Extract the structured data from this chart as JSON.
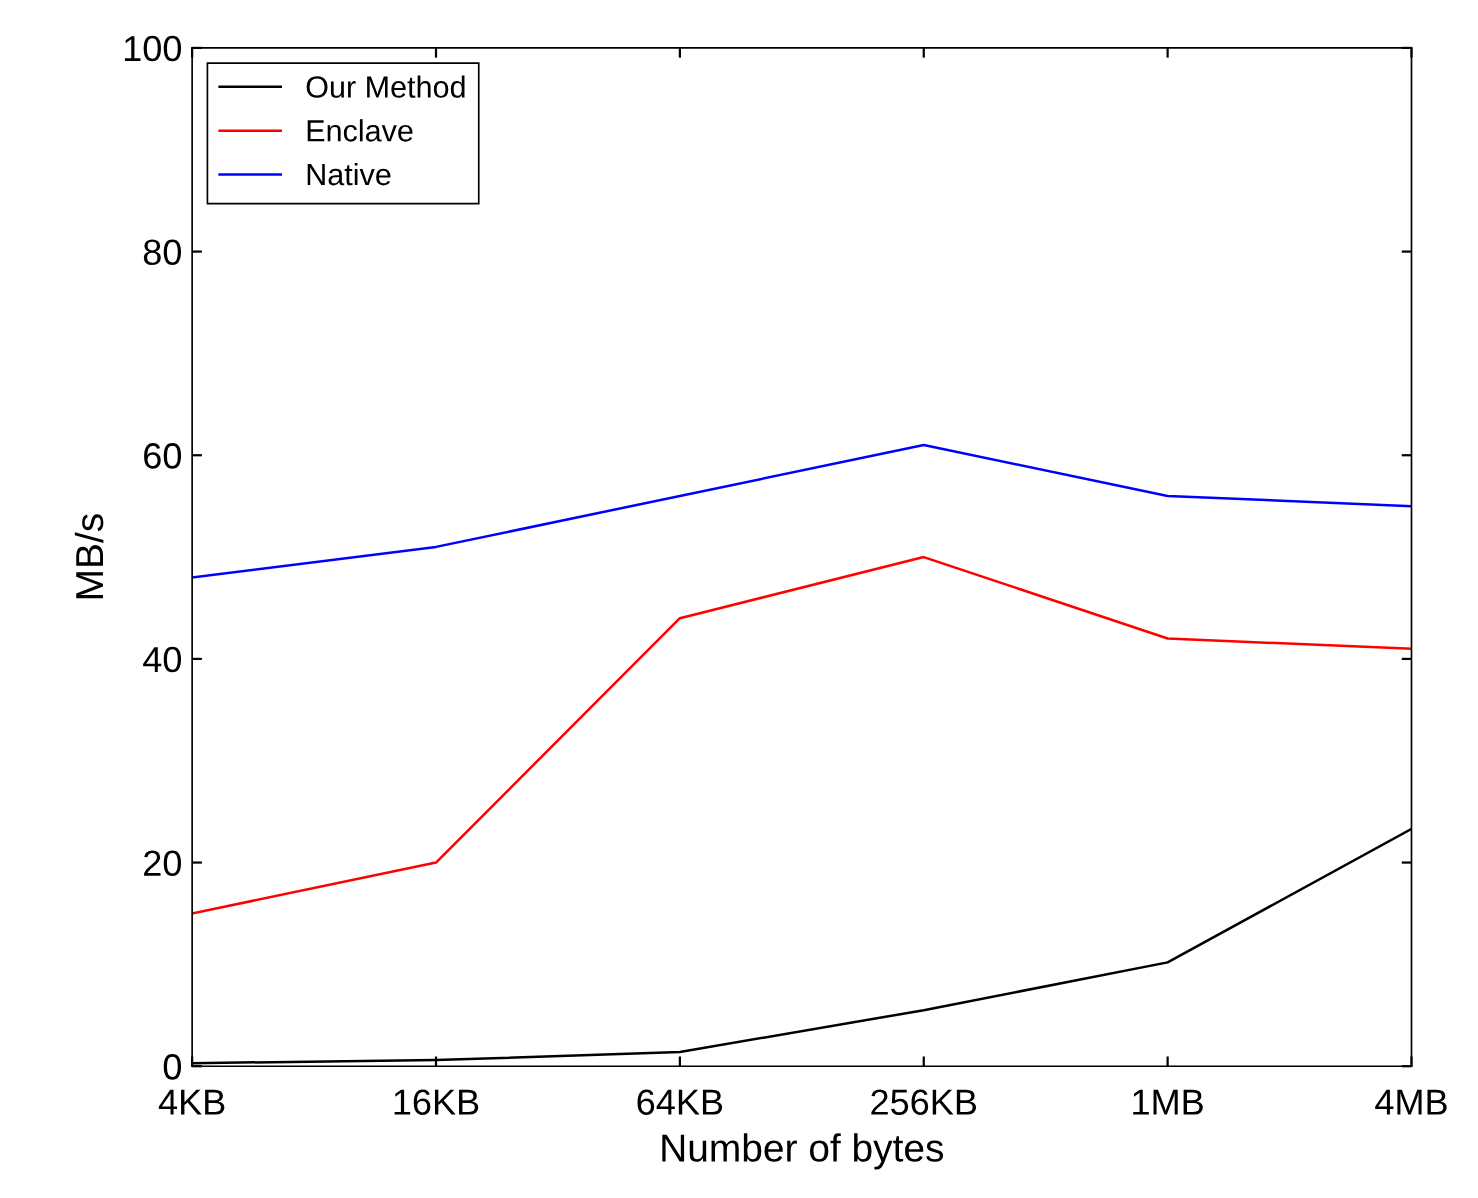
{
  "chart_data": {
    "type": "line",
    "xlabel": "Number of bytes",
    "ylabel": "MB/s",
    "categories": [
      "4KB",
      "16KB",
      "64KB",
      "256KB",
      "1MB",
      "4MB"
    ],
    "series": [
      {
        "name": "Our Method",
        "color": "#000000",
        "values": [
          0.3,
          0.6,
          1.4,
          5.5,
          10.2,
          23.3
        ]
      },
      {
        "name": "Enclave",
        "color": "#ff0000",
        "values": [
          15,
          20,
          44,
          50,
          42,
          41
        ]
      },
      {
        "name": "Native",
        "color": "#0000ff",
        "values": [
          48,
          51,
          56,
          61,
          56,
          55
        ]
      }
    ],
    "ylim": [
      0,
      100
    ],
    "yticks": [
      0,
      20,
      40,
      60,
      80,
      100
    ],
    "grid": false,
    "legend": "top left",
    "marker": "none",
    "line_style": "solid"
  }
}
